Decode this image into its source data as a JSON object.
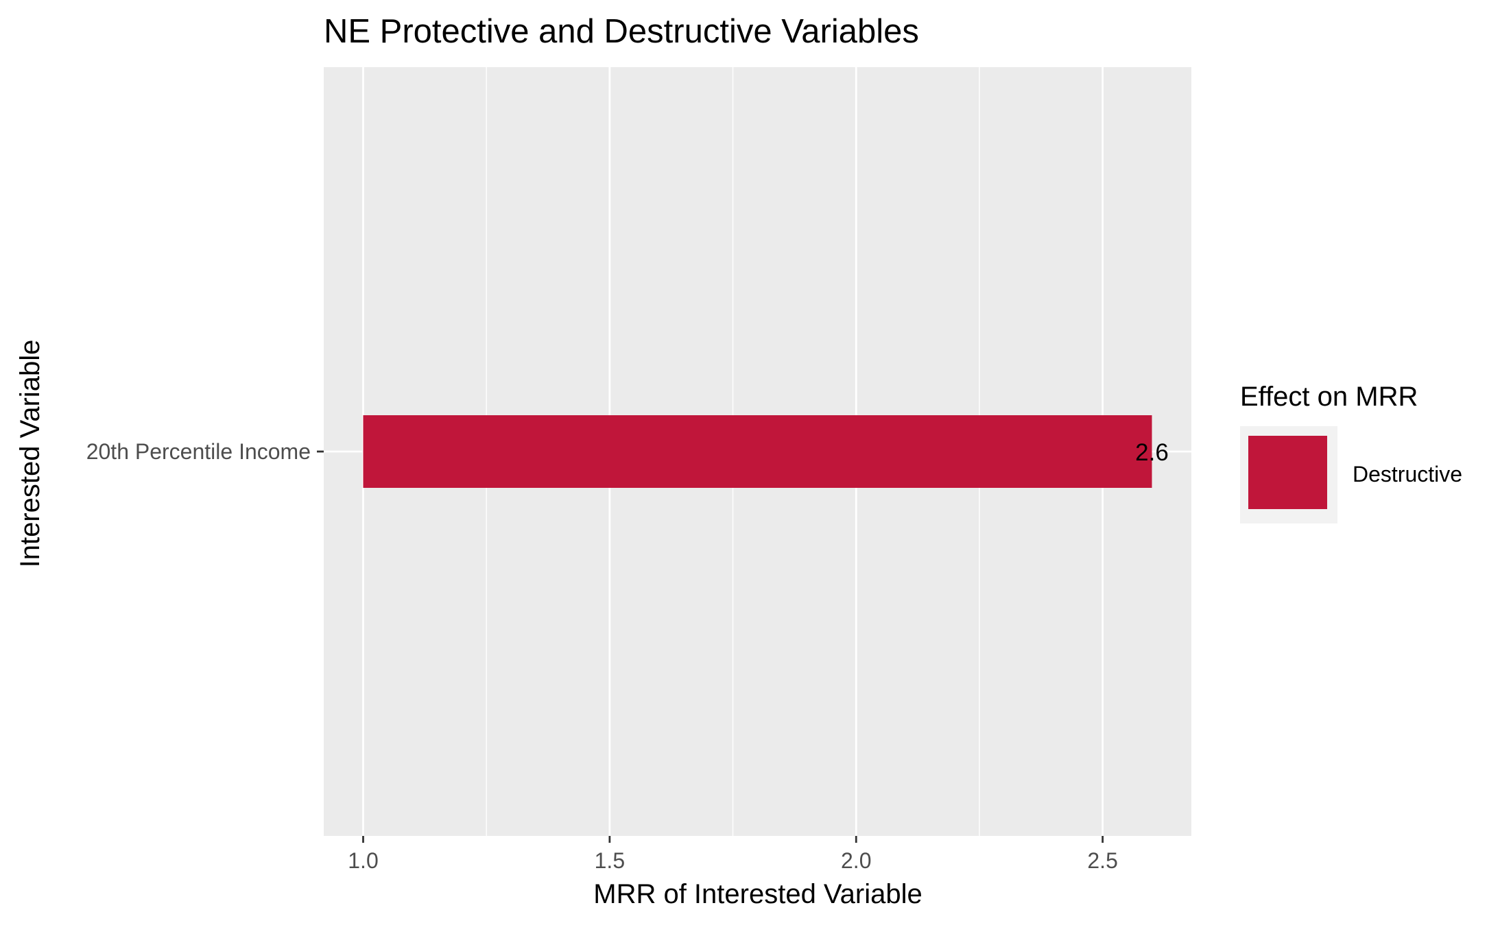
{
  "chart_data": {
    "type": "bar",
    "orientation": "horizontal",
    "title": "NE Protective and Destructive Variables",
    "xlabel": "MRR of Interested Variable",
    "ylabel": "Interested Variable",
    "categories": [
      "20th Percentile Income"
    ],
    "bar_start": 1.0,
    "values": [
      2.6
    ],
    "data_labels": [
      "2.6"
    ],
    "effects": [
      "Destructive"
    ],
    "xlim": [
      0.92,
      2.68
    ],
    "x_ticks": [
      1.0,
      1.5,
      2.0,
      2.5
    ],
    "x_tick_labels": [
      "1.0",
      "1.5",
      "2.0",
      "2.5"
    ],
    "x_minor_ticks": [
      1.25,
      1.75,
      2.25
    ],
    "grid": true,
    "panel_color": "#ebebeb",
    "grid_color": "#ffffff",
    "legend": {
      "title": "Effect on MRR",
      "placement": "right",
      "entries": [
        {
          "label": "Destructive",
          "color": "#c0163a"
        }
      ]
    }
  }
}
